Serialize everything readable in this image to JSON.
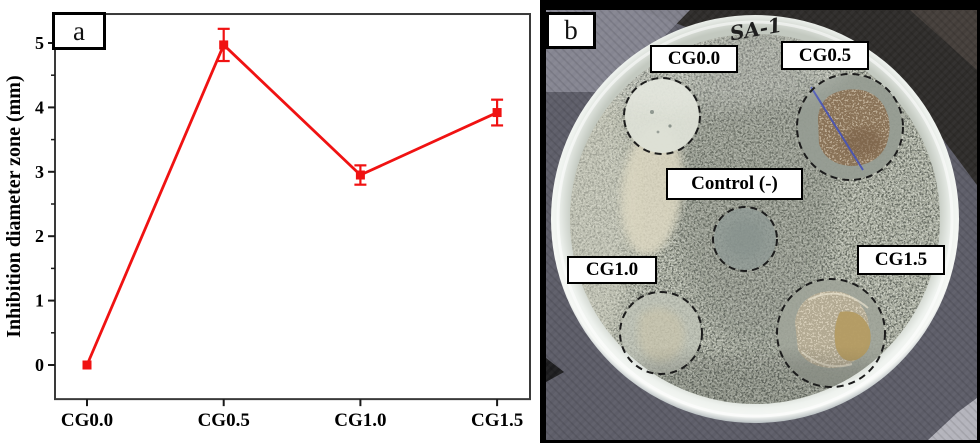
{
  "figure": {
    "panel_a_label": "a",
    "panel_b_label": "b"
  },
  "chart_data": {
    "type": "line",
    "categories": [
      "CG0.0",
      "CG0.5",
      "CG1.0",
      "CG1.5"
    ],
    "values": [
      0,
      4.97,
      2.95,
      3.92
    ],
    "error_bars": [
      0,
      0.25,
      0.15,
      0.2
    ],
    "title": "",
    "xlabel": "",
    "ylabel": "Inhibition diameter zone (mm)",
    "ylim": [
      -0.53,
      5.45
    ],
    "yticks": [
      0,
      1,
      2,
      3,
      4,
      5
    ],
    "minor_tick_step": 0.5,
    "grid": false,
    "legend": "none",
    "line_color": "#f01212",
    "marker": "square",
    "axis_color": "#3a3a3a"
  },
  "panel_b": {
    "handwriting": "SA-1",
    "zones": [
      {
        "label": "CG0.0"
      },
      {
        "label": "CG0.5"
      },
      {
        "label": "Control (-)"
      },
      {
        "label": "CG1.0"
      },
      {
        "label": "CG1.5"
      }
    ]
  },
  "colors": {
    "agar": "#abafa2",
    "fabric": "#5d5d68",
    "fabric_dark": "#2e2c2a",
    "growth_brown": "#8a7358",
    "growth_tan": "#b49b62",
    "pen_blue": "#4553b8"
  }
}
